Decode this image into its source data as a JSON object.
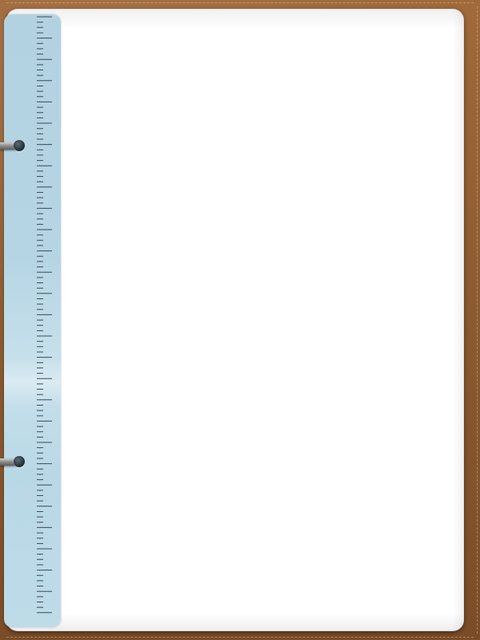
{
  "scene": {
    "type": "binder-notepad",
    "colors": {
      "cover": "#8a5a30",
      "paper": "#ffffff",
      "ruler": "#b6d5e4",
      "tick": "#3a4a55",
      "ring": "#8f8f8f"
    },
    "ruler": {
      "tick_count": 113,
      "major_every": 4
    },
    "rings": [
      {
        "name": "ring-top"
      },
      {
        "name": "ring-bottom"
      }
    ],
    "icons": {
      "ring": "binder-ring-icon"
    }
  }
}
